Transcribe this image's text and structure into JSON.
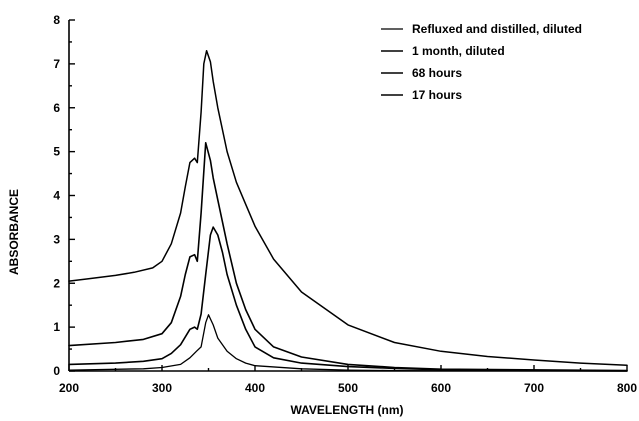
{
  "chart_data": {
    "type": "line",
    "title": "",
    "xlabel": "WAVELENGTH (nm)",
    "ylabel": "ABSORBANCE",
    "xlim": [
      200,
      800
    ],
    "ylim": [
      0,
      8
    ],
    "xticks": [
      200,
      300,
      400,
      500,
      600,
      700,
      800
    ],
    "yticks": [
      0,
      1,
      2,
      3,
      4,
      5,
      6,
      7,
      8
    ],
    "grid": false,
    "legend_position": "top-right",
    "line_color": "#000000",
    "series": [
      {
        "name": "Refluxed and distilled, diluted",
        "x": [
          200,
          280,
          300,
          320,
          330,
          337,
          342,
          347,
          350,
          355,
          360,
          370,
          380,
          390,
          400,
          450,
          500,
          550,
          600,
          800
        ],
        "y": [
          0.02,
          0.05,
          0.08,
          0.15,
          0.3,
          0.45,
          0.55,
          1.1,
          1.28,
          1.05,
          0.75,
          0.45,
          0.28,
          0.18,
          0.12,
          0.05,
          0.02,
          0.01,
          0.005,
          0.0
        ]
      },
      {
        "name": "1 month, diluted",
        "x": [
          200,
          250,
          280,
          300,
          310,
          320,
          330,
          335,
          338,
          342,
          347,
          352,
          355,
          360,
          365,
          370,
          380,
          390,
          400,
          420,
          450,
          500,
          550,
          600,
          700,
          800
        ],
        "y": [
          0.15,
          0.18,
          0.22,
          0.28,
          0.4,
          0.6,
          0.95,
          1.0,
          0.95,
          1.3,
          2.2,
          3.1,
          3.28,
          3.1,
          2.7,
          2.2,
          1.5,
          0.95,
          0.55,
          0.3,
          0.18,
          0.1,
          0.06,
          0.03,
          0.01,
          0.0
        ]
      },
      {
        "name": "68 hours",
        "x": [
          200,
          250,
          280,
          300,
          310,
          320,
          325,
          330,
          335,
          338,
          342,
          347,
          352,
          355,
          360,
          370,
          380,
          390,
          400,
          420,
          450,
          500,
          550,
          600,
          800
        ],
        "y": [
          0.58,
          0.65,
          0.72,
          0.85,
          1.1,
          1.7,
          2.2,
          2.6,
          2.65,
          2.5,
          3.6,
          5.2,
          4.8,
          4.4,
          3.9,
          2.9,
          2.0,
          1.4,
          0.95,
          0.55,
          0.32,
          0.15,
          0.08,
          0.04,
          0.01
        ]
      },
      {
        "name": "17 hours",
        "x": [
          200,
          220,
          250,
          270,
          290,
          300,
          310,
          320,
          325,
          330,
          335,
          338,
          342,
          345,
          348,
          352,
          355,
          360,
          370,
          380,
          390,
          400,
          420,
          450,
          500,
          550,
          600,
          650,
          700,
          750,
          800
        ],
        "y": [
          2.05,
          2.1,
          2.18,
          2.25,
          2.35,
          2.5,
          2.9,
          3.6,
          4.2,
          4.75,
          4.85,
          4.75,
          5.9,
          7.0,
          7.3,
          7.05,
          6.6,
          6.0,
          5.0,
          4.3,
          3.8,
          3.3,
          2.55,
          1.8,
          1.05,
          0.65,
          0.45,
          0.33,
          0.25,
          0.18,
          0.13
        ]
      }
    ]
  }
}
